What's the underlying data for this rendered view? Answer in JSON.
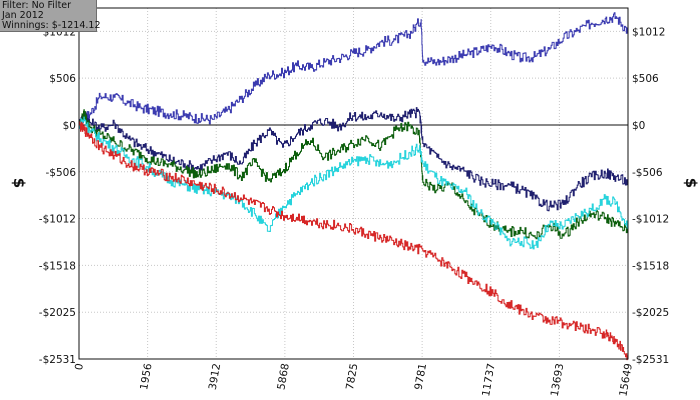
{
  "info_panel": {
    "filter": "Filter: No Filter",
    "period": "Jan 2012",
    "winnings": "Winnings: $-1214.12"
  },
  "colors": {
    "navy_top": "#3b3bb0",
    "navy_mid": "#1f1f6e",
    "dark_green": "#0c5e0c",
    "cyan": "#27d3dc",
    "red": "#d62626",
    "grid": "#c8c8c8",
    "zero_line": "#111111"
  },
  "chart_data": {
    "type": "line",
    "title": "",
    "xlabel": "",
    "ylabel": "$",
    "xlim": [
      0,
      15649
    ],
    "ylim": [
      -2531,
      1265
    ],
    "x_ticks": [
      0,
      1956,
      3912,
      5868,
      7825,
      9781,
      11737,
      13693,
      15649
    ],
    "y_ticks": [
      1012,
      506,
      0,
      -506,
      -1012,
      -1518,
      -2025,
      -2531
    ],
    "y_tick_labels": [
      "$1012",
      "$506",
      "$0",
      "-$506",
      "-$1012",
      "-$1518",
      "-$2025",
      "-$2531"
    ],
    "grid": true,
    "series": [
      {
        "color_key": "navy_top",
        "x": [
          0,
          150,
          300,
          600,
          1000,
          1400,
          1800,
          2200,
          2600,
          3000,
          3400,
          3800,
          4200,
          4600,
          5000,
          5400,
          5800,
          6200,
          6600,
          7000,
          7400,
          7800,
          8200,
          8600,
          9000,
          9400,
          9750,
          9800,
          10200,
          10600,
          11000,
          11400,
          11800,
          12200,
          12600,
          13000,
          13400,
          13800,
          14200,
          14600,
          15000,
          15300,
          15649
        ],
        "values": [
          0,
          90,
          110,
          310,
          300,
          240,
          180,
          150,
          120,
          100,
          70,
          60,
          150,
          280,
          420,
          540,
          560,
          640,
          620,
          680,
          720,
          780,
          810,
          900,
          920,
          980,
          1140,
          700,
          680,
          720,
          760,
          800,
          860,
          780,
          720,
          740,
          820,
          940,
          1020,
          1100,
          1150,
          1170,
          1010
        ]
      },
      {
        "color_key": "navy_mid",
        "x": [
          0,
          150,
          300,
          600,
          1000,
          1400,
          1800,
          2200,
          2600,
          3000,
          3400,
          3800,
          4200,
          4600,
          5000,
          5400,
          5800,
          6200,
          6600,
          7000,
          7400,
          7800,
          8200,
          8600,
          9000,
          9400,
          9700,
          9800,
          10200,
          10600,
          11000,
          11400,
          11800,
          12200,
          12600,
          13000,
          13400,
          13800,
          14200,
          14600,
          15000,
          15300,
          15649
        ],
        "values": [
          0,
          130,
          30,
          -40,
          20,
          -150,
          -240,
          -300,
          -380,
          -420,
          -470,
          -380,
          -300,
          -420,
          -200,
          -60,
          -240,
          -100,
          0,
          50,
          -20,
          100,
          80,
          130,
          60,
          120,
          140,
          -200,
          -350,
          -450,
          -500,
          -600,
          -640,
          -650,
          -700,
          -800,
          -880,
          -860,
          -650,
          -560,
          -520,
          -560,
          -620
        ]
      },
      {
        "color_key": "dark_green",
        "x": [
          0,
          150,
          300,
          600,
          1000,
          1400,
          1800,
          2200,
          2600,
          3000,
          3400,
          3800,
          4200,
          4600,
          5000,
          5400,
          5800,
          6200,
          6600,
          7000,
          7400,
          7800,
          8200,
          8600,
          9000,
          9400,
          9700,
          9800,
          10200,
          10600,
          11000,
          11400,
          11800,
          12200,
          12600,
          13000,
          13400,
          13800,
          14200,
          14600,
          15000,
          15300,
          15649
        ],
        "values": [
          0,
          120,
          -20,
          -100,
          -180,
          -260,
          -330,
          -400,
          -430,
          -480,
          -540,
          -490,
          -420,
          -560,
          -400,
          -600,
          -500,
          -300,
          -170,
          -350,
          -280,
          -200,
          -130,
          -240,
          -60,
          -10,
          -120,
          -620,
          -700,
          -650,
          -840,
          -980,
          -1080,
          -1160,
          -1140,
          -1220,
          -1080,
          -1200,
          -1050,
          -960,
          -1000,
          -1070,
          -1140
        ]
      },
      {
        "color_key": "cyan",
        "x": [
          0,
          150,
          300,
          600,
          1000,
          1400,
          1800,
          2200,
          2600,
          3000,
          3400,
          3800,
          4200,
          4600,
          5000,
          5400,
          5800,
          6200,
          6600,
          7000,
          7400,
          7800,
          8200,
          8600,
          9000,
          9400,
          9700,
          9800,
          10200,
          10600,
          11000,
          11400,
          11800,
          12200,
          12600,
          13000,
          13400,
          13800,
          14200,
          14600,
          15000,
          15300,
          15649
        ],
        "values": [
          0,
          60,
          -60,
          -150,
          -250,
          -350,
          -420,
          -520,
          -600,
          -650,
          -700,
          -720,
          -760,
          -820,
          -960,
          -1150,
          -880,
          -750,
          -620,
          -540,
          -460,
          -400,
          -360,
          -430,
          -400,
          -300,
          -250,
          -420,
          -580,
          -680,
          -720,
          -950,
          -1050,
          -1250,
          -1260,
          -1300,
          -1080,
          -1100,
          -980,
          -920,
          -800,
          -850,
          -1100
        ]
      },
      {
        "color_key": "red",
        "x": [
          0,
          150,
          300,
          600,
          1000,
          1400,
          1800,
          2200,
          2600,
          3000,
          3400,
          3800,
          4200,
          4600,
          5000,
          5400,
          5800,
          6200,
          6600,
          7000,
          7400,
          7800,
          8200,
          8600,
          9000,
          9400,
          9800,
          10200,
          10600,
          11000,
          11400,
          11800,
          12200,
          12600,
          13000,
          13400,
          13800,
          14200,
          14600,
          15000,
          15200,
          15400,
          15649
        ],
        "values": [
          0,
          -60,
          -110,
          -240,
          -330,
          -420,
          -480,
          -520,
          -560,
          -600,
          -650,
          -690,
          -740,
          -790,
          -860,
          -910,
          -980,
          -1000,
          -1040,
          -1070,
          -1090,
          -1130,
          -1180,
          -1220,
          -1270,
          -1320,
          -1360,
          -1450,
          -1540,
          -1640,
          -1720,
          -1820,
          -1920,
          -2010,
          -2070,
          -2110,
          -2140,
          -2180,
          -2220,
          -2260,
          -2300,
          -2380,
          -2531
        ]
      }
    ]
  }
}
